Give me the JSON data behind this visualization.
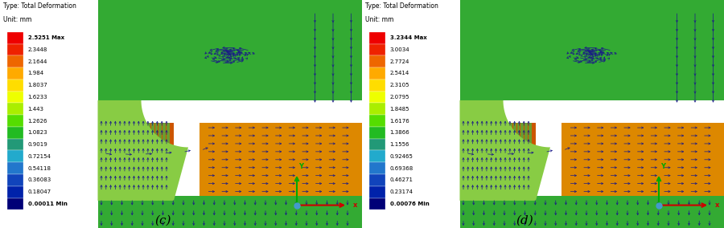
{
  "panel_c": {
    "title_line1": "Type: Total Deformation",
    "title_line2": "Unit: mm",
    "colorbar_labels": [
      "2.5251 Max",
      "2.3448",
      "2.1644",
      "1.984",
      "1.8037",
      "1.6233",
      "1.443",
      "1.2626",
      "1.0823",
      "0.9019",
      "0.72154",
      "0.54118",
      "0.36083",
      "0.18047",
      "0.00011 Min"
    ],
    "subfig_label": "(c)"
  },
  "panel_d": {
    "title_line1": "Type: Total Deformation",
    "title_line2": "Unit: mm",
    "colorbar_labels": [
      "3.2344 Max",
      "3.0034",
      "2.7724",
      "2.5414",
      "2.3105",
      "2.0795",
      "1.8485",
      "1.6176",
      "1.3866",
      "1.1556",
      "0.92465",
      "0.69368",
      "0.46271",
      "0.23174",
      "0.00076 Min"
    ],
    "subfig_label": "(d)"
  },
  "colorbar_colors": [
    "#ee0000",
    "#ee2200",
    "#ee6600",
    "#ffaa00",
    "#ffdd00",
    "#eeff00",
    "#aaee00",
    "#55dd00",
    "#22bb22",
    "#229977",
    "#22aacc",
    "#2277cc",
    "#1144bb",
    "#0022aa",
    "#000077"
  ],
  "fig_bg": "#ffffff",
  "panel_bg": "#f0f0f0",
  "white_bg": "#ffffff"
}
